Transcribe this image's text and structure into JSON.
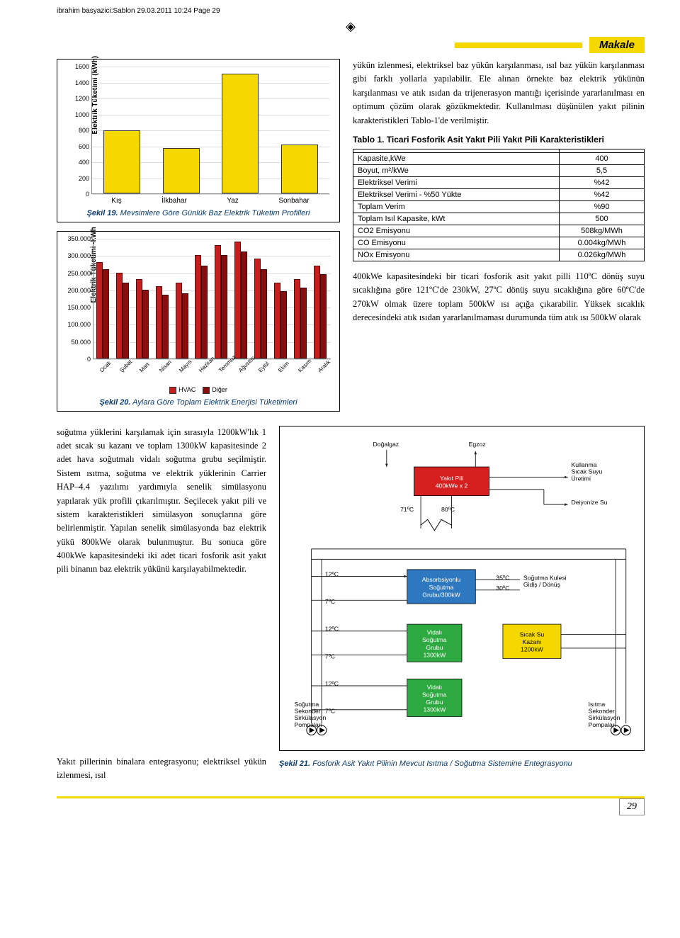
{
  "header": {
    "docinfo": "ibrahim basyazici:Sablon  29.03.2011  10:24  Page 29"
  },
  "badge": {
    "label": "Makale"
  },
  "chart1": {
    "type": "bar",
    "ylabel": "Elektrik Tüketimi (kWh)",
    "ylim": [
      0,
      1600
    ],
    "ytick_step": 200,
    "yticks": [
      "0",
      "200",
      "400",
      "600",
      "800",
      "1000",
      "1200",
      "1400",
      "1600"
    ],
    "bar_color": "#f4d800",
    "border_color": "#333333",
    "categories": [
      "Kış",
      "İlkbahar",
      "Yaz",
      "Sonbahar"
    ],
    "values": [
      790,
      570,
      1500,
      610
    ],
    "caption_label": "Şekil 19.",
    "caption": "Mevsimlere Göre Günlük Baz Elektrik Tüketim Profilleri"
  },
  "chart2": {
    "type": "grouped-bar",
    "ylabel": "Elektrik Tüketimi -kWh",
    "ylim": [
      0,
      350000
    ],
    "ytick_step": 50000,
    "yticks": [
      "0",
      "50.000",
      "100.000",
      "150.000",
      "200.000",
      "250.000",
      "300.000",
      "350.000"
    ],
    "series_a_color": "#c41e1e",
    "series_b_color": "#8a0c0c",
    "categories": [
      "Ocak",
      "Şubat",
      "Mart",
      "Nisan",
      "Mayıs",
      "Haziran",
      "Temmuz",
      "Ağustos",
      "Eylül",
      "Ekim",
      "Kasım",
      "Aralık"
    ],
    "series_a": [
      280000,
      250000,
      230000,
      210000,
      220000,
      300000,
      330000,
      340000,
      290000,
      220000,
      230000,
      270000
    ],
    "series_b": [
      260000,
      220000,
      200000,
      185000,
      190000,
      270000,
      300000,
      310000,
      260000,
      195000,
      205000,
      245000
    ],
    "legend_a": "HVAC",
    "legend_b": "Diğer",
    "caption_label": "Şekil 20.",
    "caption": "Aylara Göre Toplam Elektrik Enerjisi Tüketimleri"
  },
  "paragraphs": {
    "right_top": "yükün izlenmesi, elektriksel baz yükün karşılanması, ısıl baz yükün karşılanması gibi farklı yollarla yapılabilir. Ele alınan örnekte baz elektrik yükünün karşılanması ve atık ısıdan da trijenerasyon mantığı içerisinde yararlanılması en optimum çözüm olarak gözükmektedir. Kullanılması düşünülen yakıt pilinin karakteristikleri Tablo-1'de verilmiştir.",
    "right_after_table": "400kWe kapasitesindeki bir ticari fosforik asit yakıt pilli 110ºC dönüş suyu sıcaklığına göre 121ºC'de 230kW, 27ºC dönüş suyu sıcaklığına göre 60ºC'de 270kW olmak üzere toplam 500kW ısı açığa çıkarabilir. Yüksek sıcaklık derecesindeki atık ısıdan yararlanılmaması durumunda tüm atık ısı 500kW olarak",
    "lower_left": "soğutma yüklerini karşılamak için sırasıyla 1200kW'lık 1 adet sıcak su kazanı ve toplam 1300kW kapasitesinde 2 adet hava soğutmalı vidalı soğutma grubu seçilmiştir. Sistem ısıtma, soğutma ve elektrik yüklerinin Carrier HAP–4.4 yazılımı yardımıyla senelik simülasyonu yapılarak yük profili çıkarılmıştır. Seçilecek yakıt pili ve sistem karakteristikleri simülasyon sonuçlarına göre belirlenmiştir. Yapılan senelik simülasyonda baz elektrik yükü 800kWe olarak bulunmuştur. Bu sonuca göre 400kWe kapasitesindeki iki adet ticari fosforik asit yakıt pili binanın baz elektrik yükünü karşılayabilmektedir.",
    "bottom_left": "Yakıt pillerinin binalara entegrasyonu; elektriksel yükün izlenmesi, ısıl"
  },
  "table1": {
    "title": "Tablo 1. Ticari Fosforik Asit Yakıt Pili Yakıt Pili Karakteristikleri",
    "rows": [
      [
        "Kapasite,kWe",
        "400"
      ],
      [
        "Boyut, m²/kWe",
        "5,5"
      ],
      [
        "Elektriksel Verimi",
        "%42"
      ],
      [
        "Elektriksel Verimi - %50 Yükte",
        "%42"
      ],
      [
        "Toplam Verim",
        "%90"
      ],
      [
        "Toplam Isıl Kapasite, kWt",
        "500"
      ],
      [
        "CO2 Emisyonu",
        "508kg/MWh"
      ],
      [
        "CO Emisyonu",
        "0.004kg/MWh"
      ],
      [
        "NOx Emisyonu",
        "0.026kg/MWh"
      ]
    ]
  },
  "diagram": {
    "labels": {
      "dogalgaz": "Doğalgaz",
      "egzoz": "Egzoz",
      "yakitpili": "Yakıt Pili\n400kWe x 2",
      "kullanma": "Kullanma\nSıcak Suyu\nÜretimi",
      "deiyonize": "Deiyonize Su",
      "71c": "71ºC",
      "80c": "80ºC",
      "12c": "12ºC",
      "7c": "7ºC",
      "35c": "35ºC",
      "30c": "30ºC",
      "absorb": "Absorbsiyonlu\nSoğutma\nGrubu/300kW",
      "sogkule": "Soğutma Kulesi\nGidiş / Dönüş",
      "vidali1": "Vidalı\nSoğutma\nGrubu\n1300kW",
      "vidali2": "Vidalı\nSoğutma\nGrubu\n1300kW",
      "sicaksu": "Sıcak Su\nKazanı\n1200kW",
      "sogutsek": "Soğutma\nSekonder\nSirkülasyon\nPompaları",
      "isitsek": "Isıtma\nSekonder\nSirkülasyon\nPompaları"
    },
    "colors": {
      "yakitpili_bg": "#d62020",
      "absorb_bg": "#2e78c0",
      "vidali_bg": "#2ea840",
      "sicaksu_bg": "#f4d800",
      "box_text": "#ffffff",
      "sicaksu_text": "#000000",
      "line": "#222222"
    },
    "caption_label": "Şekil 21.",
    "caption": "Fosforik Asit Yakıt Pilinin Mevcut Isıtma / Soğutma Sistemine Entegrasyonu"
  },
  "page_number": "29"
}
